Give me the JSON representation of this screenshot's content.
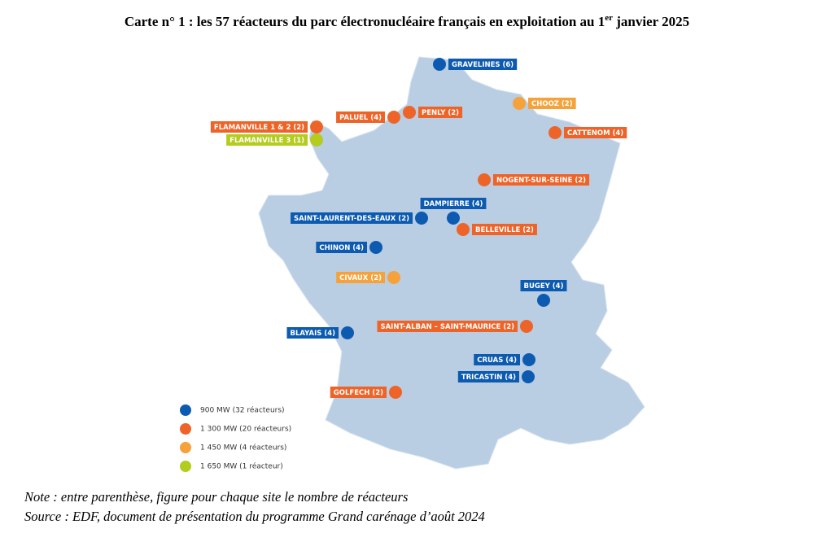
{
  "title": {
    "main": "Carte n° 1 : les 57 réacteurs du parc électronucléaire français en exploitation au 1",
    "sup": "er",
    "end": " janvier 2025"
  },
  "sites": [
    {
      "label": "GRAVELINES (6)",
      "color": "#0d5bb0"
    },
    {
      "label": "CHOOZ (2)",
      "color": "#f5a23a"
    },
    {
      "label": "PENLY (2)",
      "color": "#ee6428"
    },
    {
      "label": "PALUEL (4)",
      "color": "#ee6428"
    },
    {
      "label": "FLAMANVILLE 1 & 2 (2)",
      "color": "#ee6428"
    },
    {
      "label": "FLAMANVILLE 3 (1)",
      "color": "#b3cc1e"
    },
    {
      "label": "CATTENOM (4)",
      "color": "#ee6428"
    },
    {
      "label": "NOGENT-SUR-SEINE (2)",
      "color": "#ee6428"
    },
    {
      "label": "DAMPIERRE (4)",
      "color": "#0d5bb0"
    },
    {
      "label": "SAINT-LAURENT-DES-EAUX (2)",
      "color": "#0d5bb0"
    },
    {
      "label": "BELLEVILLE (2)",
      "color": "#ee6428"
    },
    {
      "label": "CHINON (4)",
      "color": "#0d5bb0"
    },
    {
      "label": "CIVAUX (2)",
      "color": "#f5a23a"
    },
    {
      "label": "BUGEY (4)",
      "color": "#0d5bb0"
    },
    {
      "label": "SAINT-ALBAN – SAINT-MAURICE (2)",
      "color": "#ee6428"
    },
    {
      "label": "BLAYAIS (4)",
      "color": "#0d5bb0"
    },
    {
      "label": "CRUAS (4)",
      "color": "#0d5bb0"
    },
    {
      "label": "TRICASTIN (4)",
      "color": "#0d5bb0"
    },
    {
      "label": "GOLFECH (2)",
      "color": "#ee6428"
    }
  ],
  "legend": [
    {
      "label": "900 MW (32 réacteurs)",
      "color": "#0d5bb0"
    },
    {
      "label": "1 300 MW (20 réacteurs)",
      "color": "#ee6428"
    },
    {
      "label": "1 450 MW (4 réacteurs)",
      "color": "#f5a23a"
    },
    {
      "label": "1 650 MW (1 réacteur)",
      "color": "#b3cc1e"
    }
  ],
  "note": "Note : entre parenthèse, figure pour chaque site le nombre de réacteurs",
  "source": "Source : EDF, document de présentation du programme Grand carénage d’août 2024"
}
